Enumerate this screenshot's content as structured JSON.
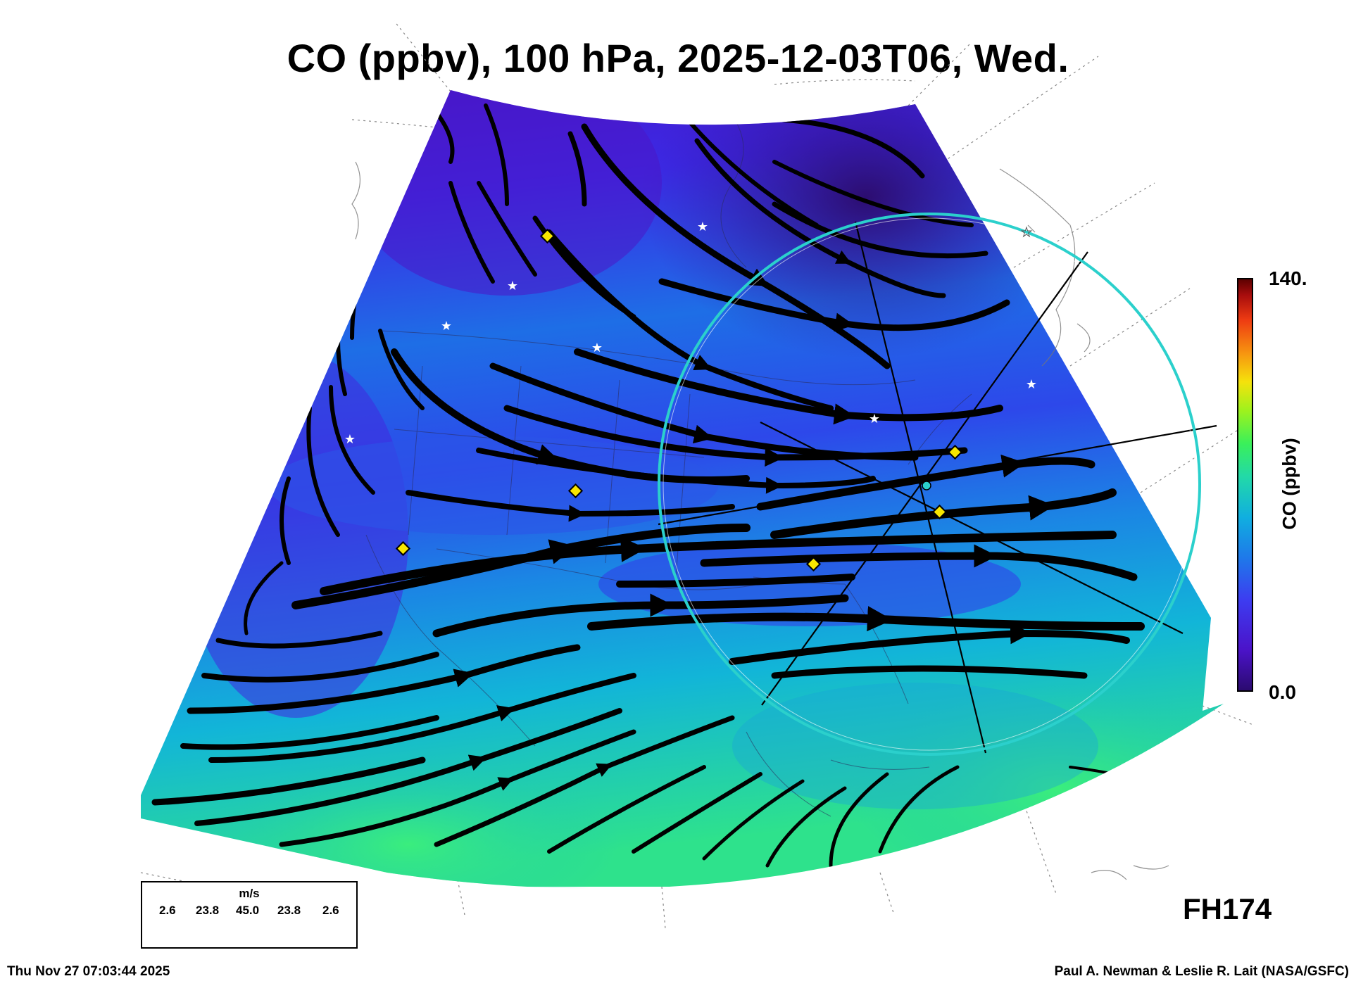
{
  "title": "CO (ppbv), 100 hPa, 2025-12-03T06, Wed.",
  "colorbar": {
    "max_label": "140.",
    "min_label": "0.0",
    "axis_label": "CO (ppbv)",
    "colors": [
      "#2a0a6e",
      "#4b13c9",
      "#3d3cf0",
      "#1f77ea",
      "#10aee0",
      "#22d9a8",
      "#3af05a",
      "#9ef21d",
      "#f5e20c",
      "#f79410",
      "#ee3b12",
      "#a80d0d",
      "#5a0000"
    ]
  },
  "forecast_hour": "FH174",
  "wind_legend": {
    "unit": "m/s",
    "values": [
      "2.6",
      "23.8",
      "45.0",
      "23.8",
      "2.6"
    ]
  },
  "footer": {
    "left": "Thu Nov 27 07:03:44 2025",
    "right": "Paul A. Newman & Leslie R. Lait (NASA/GSFC)"
  },
  "map_colors": {
    "ring": "#2bd0cc",
    "marker_fill": "#f7e600",
    "streamline": "#000000"
  }
}
